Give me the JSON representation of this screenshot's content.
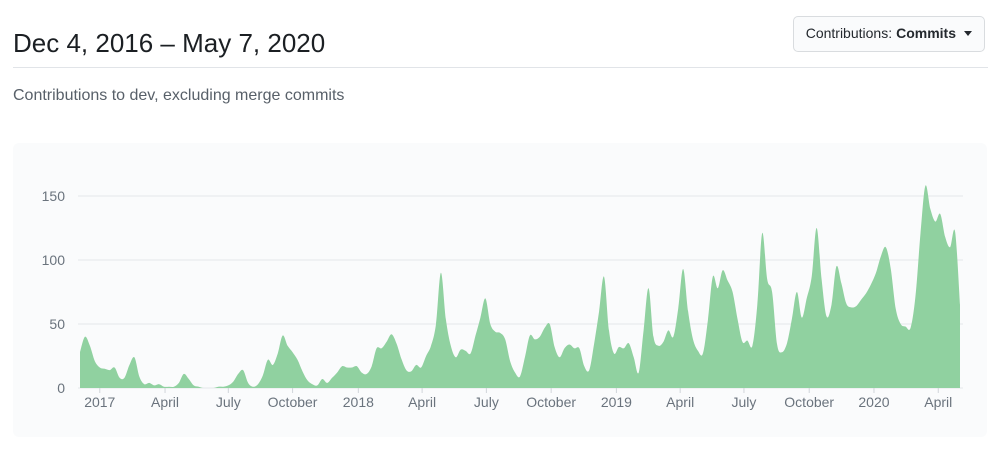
{
  "header": {
    "title": "Dec 4, 2016 – May 7, 2020",
    "filter_button": {
      "prefix": "Contributions:",
      "selected": "Commits"
    }
  },
  "subtitle": "Contributions to dev, excluding merge commits",
  "chart_data": {
    "type": "area",
    "title": "Contributions to dev, excluding merge commits",
    "x_unit": "week",
    "x_start_date": "2016-12-04",
    "x_end_date": "2020-05-07",
    "values": [
      28,
      40,
      33,
      21,
      16,
      15,
      14,
      16,
      8,
      8,
      18,
      24,
      9,
      3,
      4,
      2,
      3,
      1,
      1,
      1,
      4,
      11,
      7,
      2,
      1,
      0,
      0,
      0,
      1,
      1,
      2,
      5,
      11,
      14,
      4,
      1,
      3,
      10,
      22,
      18,
      27,
      41,
      33,
      28,
      22,
      13,
      6,
      3,
      2,
      7,
      4,
      8,
      12,
      17,
      16,
      16,
      17,
      12,
      11,
      17,
      31,
      31,
      36,
      42,
      35,
      23,
      14,
      13,
      18,
      16,
      25,
      33,
      50,
      90,
      54,
      33,
      24,
      30,
      29,
      27,
      41,
      55,
      70,
      50,
      44,
      43,
      38,
      21,
      12,
      9,
      24,
      41,
      38,
      40,
      47,
      50,
      32,
      24,
      31,
      34,
      31,
      31,
      17,
      14,
      35,
      60,
      87,
      45,
      27,
      32,
      31,
      35,
      24,
      12,
      45,
      78,
      40,
      33,
      36,
      45,
      40,
      62,
      93,
      60,
      38,
      29,
      27,
      53,
      87,
      78,
      92,
      84,
      75,
      54,
      36,
      37,
      33,
      65,
      121,
      85,
      75,
      34,
      28,
      35,
      54,
      75,
      55,
      70,
      87,
      125,
      85,
      56,
      65,
      95,
      82,
      66,
      63,
      64,
      69,
      74,
      81,
      90,
      103,
      110,
      93,
      62,
      50,
      48,
      47,
      72,
      120,
      158,
      140,
      130,
      136,
      118,
      110,
      122,
      65
    ],
    "y_ticks": [
      0,
      50,
      100,
      150
    ],
    "ylim": [
      0,
      170
    ],
    "x_ticks": [
      {
        "label": "2017",
        "week": 4
      },
      {
        "label": "April",
        "week": 17.2
      },
      {
        "label": "July",
        "week": 30
      },
      {
        "label": "October",
        "week": 43
      },
      {
        "label": "2018",
        "week": 56.3
      },
      {
        "label": "April",
        "week": 69.2
      },
      {
        "label": "July",
        "week": 82.2
      },
      {
        "label": "October",
        "week": 95.3
      },
      {
        "label": "2019",
        "week": 108.5
      },
      {
        "label": "April",
        "week": 121.4
      },
      {
        "label": "July",
        "week": 134.3
      },
      {
        "label": "October",
        "week": 147.5
      },
      {
        "label": "2020",
        "week": 160.6
      },
      {
        "label": "April",
        "week": 173.6
      }
    ],
    "grid": "horizontal",
    "legend": "none",
    "colors": {
      "area_fill": "#90d1a0",
      "grid_line": "#e4e7ea",
      "axis_text": "#6a737d",
      "tick_mark": "#d1d5da",
      "panel_bg": "#fafbfc"
    }
  }
}
